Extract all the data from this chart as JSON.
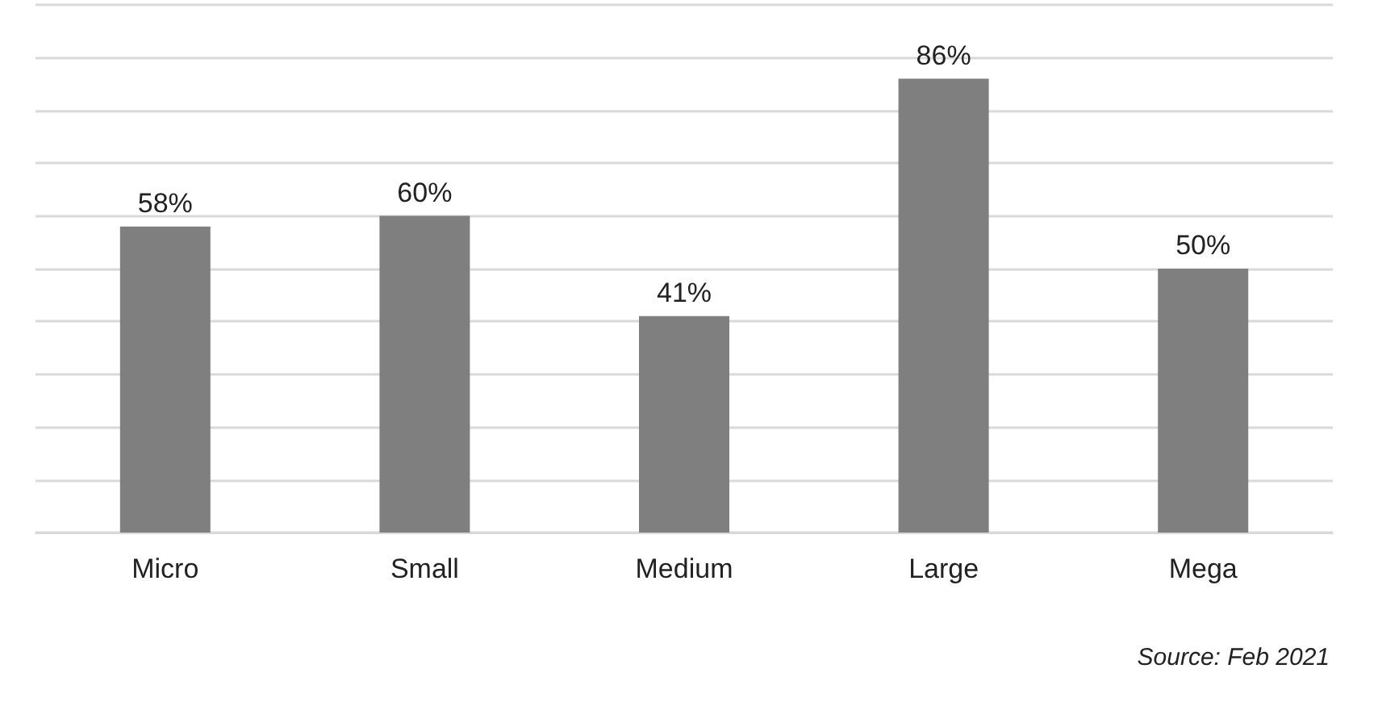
{
  "chart_data": {
    "type": "bar",
    "categories": [
      "Micro",
      "Small",
      "Medium",
      "Large",
      "Mega"
    ],
    "values": [
      58,
      60,
      41,
      86,
      50
    ],
    "value_labels": [
      "58%",
      "60%",
      "41%",
      "86%",
      "50%"
    ],
    "color": "#7f7f7f",
    "ylim": [
      0,
      100
    ],
    "yticks": [
      {
        "value": 0,
        "label": null
      },
      {
        "value": 10,
        "label": null
      },
      {
        "value": 20,
        "label": null
      },
      {
        "value": 30,
        "label": null
      },
      {
        "value": 40,
        "label": null
      },
      {
        "value": 50,
        "label": null
      },
      {
        "value": 60,
        "label": null
      },
      {
        "value": 70,
        "label": null
      },
      {
        "value": 80,
        "label": null
      },
      {
        "value": 90,
        "label": null
      },
      {
        "value": 100,
        "label": null
      }
    ],
    "grid": "y",
    "tick_labels": "x",
    "annotations": [
      "Source: Feb 2021"
    ]
  }
}
